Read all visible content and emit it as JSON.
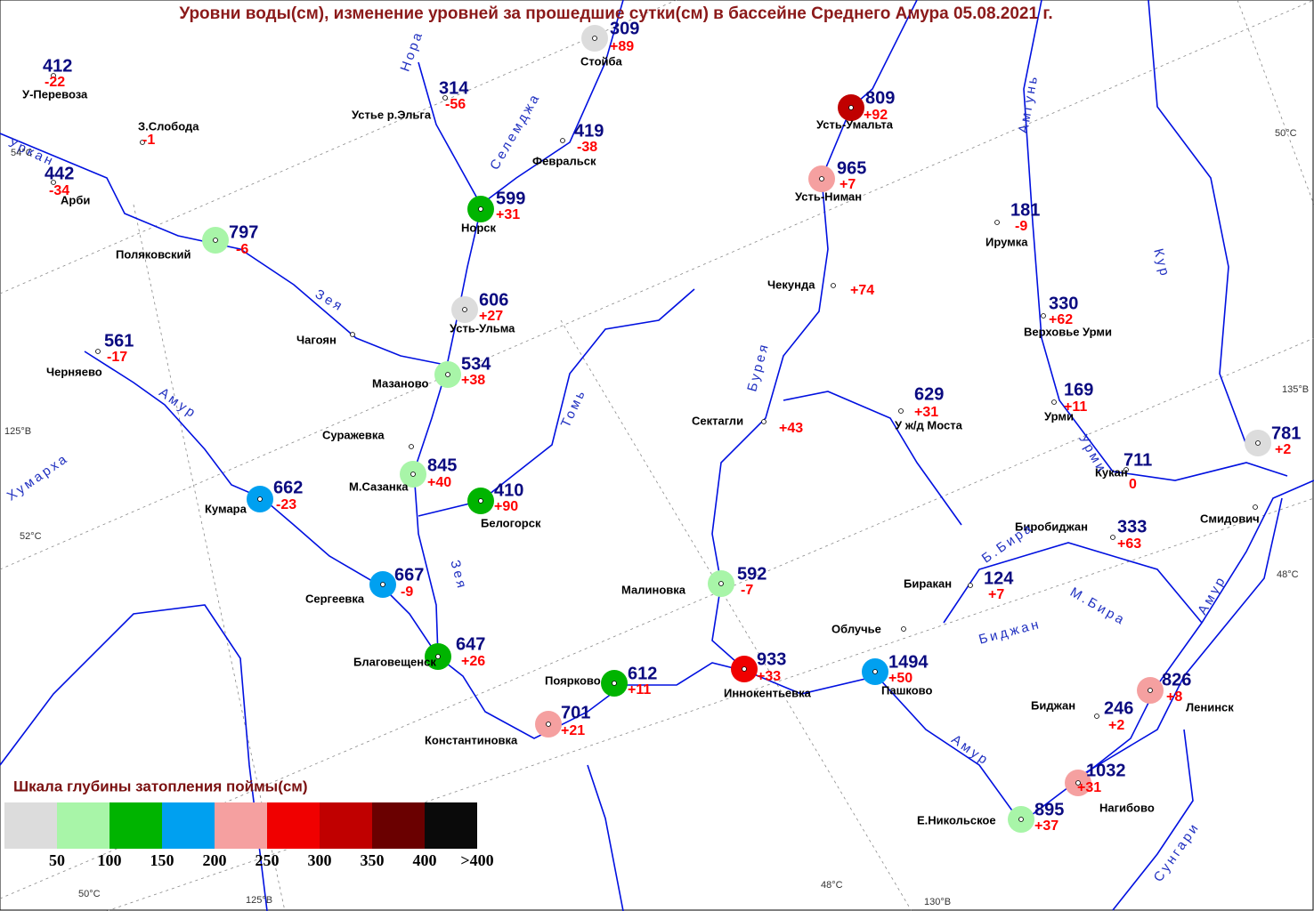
{
  "title": "Уровни воды(см), изменение уровней за прошедшие сутки(см) в бассейне Среднего Амура 05.08.2021 г.",
  "stations": [
    {
      "name": "У-Перевоза",
      "level": 412,
      "change": "-22"
    },
    {
      "name": "З.Слобода",
      "change": "-1"
    },
    {
      "name": "Арби",
      "level": 442,
      "change": "-34"
    },
    {
      "name": "Поляковский",
      "level": 797,
      "change": "-6",
      "color": "#a8f5a8"
    },
    {
      "name": "Устье р.Эльга",
      "level": 314,
      "change": "-56"
    },
    {
      "name": "Стойба",
      "level": 309,
      "change": "+89",
      "color": "#dcdcdc"
    },
    {
      "name": "Февральск",
      "level": 419,
      "change": "-38"
    },
    {
      "name": "Норск",
      "level": 599,
      "change": "+31",
      "color": "#00b400"
    },
    {
      "name": "Усть-Ульма",
      "level": 606,
      "change": "+27",
      "color": "#dcdcdc"
    },
    {
      "name": "Мазаново",
      "level": 534,
      "change": "+38",
      "color": "#a8f5a8"
    },
    {
      "name": "Суражевка"
    },
    {
      "name": "Чагоян"
    },
    {
      "name": "Черняево",
      "level": 561,
      "change": "-17"
    },
    {
      "name": "Кумара",
      "level": 662,
      "change": "-23",
      "color": "#00a0f0"
    },
    {
      "name": "М.Сазанка",
      "level": 845,
      "change": "+40",
      "color": "#a8f5a8"
    },
    {
      "name": "Белогорск",
      "level": 410,
      "change": "+90",
      "color": "#00b400"
    },
    {
      "name": "Сергеевка",
      "level": 667,
      "change": "-9",
      "color": "#00a0f0"
    },
    {
      "name": "Благовещенск",
      "level": 647,
      "change": "+26",
      "color": "#00b400"
    },
    {
      "name": "Поярково",
      "level": 612,
      "change": "+11",
      "color": "#00b400"
    },
    {
      "name": "Константиновка",
      "level": 701,
      "change": "+21",
      "color": "#f5a0a0"
    },
    {
      "name": "Малиновка",
      "level": 592,
      "change": "-7",
      "color": "#a8f5a8"
    },
    {
      "name": "Иннокентьевка",
      "level": 933,
      "change": "+33",
      "color": "#f00000"
    },
    {
      "name": "Пашково",
      "level": 1494,
      "change": "+50",
      "color": "#00a0f0"
    },
    {
      "name": "Усть-Умальта",
      "level": 809,
      "change": "+92",
      "color": "#c00000"
    },
    {
      "name": "Усть-Ниман",
      "level": 965,
      "change": "+7",
      "color": "#f5a0a0"
    },
    {
      "name": "Чекунда",
      "change": "+74"
    },
    {
      "name": "Сектагли",
      "change": "+43"
    },
    {
      "name": "У ж/д Моста",
      "level": 629,
      "change": "+31"
    },
    {
      "name": "Ирумка",
      "level": 181,
      "change": "-9"
    },
    {
      "name": "Верховье Урми",
      "level": 330,
      "change": "+62"
    },
    {
      "name": "Урми",
      "level": 169,
      "change": "+11"
    },
    {
      "name": "Кукан",
      "level": 711,
      "change": "0"
    },
    {
      "level": 781,
      "change": "+2",
      "color": "#dcdcdc"
    },
    {
      "name": "Смидович"
    },
    {
      "name": "Биробиджан",
      "level": 333,
      "change": "+63"
    },
    {
      "name": "Биракан",
      "level": 124,
      "change": "+7"
    },
    {
      "name": "Облучье"
    },
    {
      "name": "Ленинск",
      "level": 826,
      "change": "+8",
      "color": "#f5a0a0"
    },
    {
      "name": "Биджан",
      "level": 246,
      "change": "+2"
    },
    {
      "name": "Нагибово",
      "level": 1032,
      "change": "+31",
      "color": "#f5a0a0"
    },
    {
      "name": "Е.Никольское",
      "level": 895,
      "change": "+37",
      "color": "#a8f5a8"
    }
  ],
  "river_labels": [
    "Уркан",
    "Нора",
    "Селемджа",
    "Зея",
    "Зея",
    "Амур",
    "Амур",
    "Амур",
    "Хумарха",
    "Томь",
    "Бурея",
    "Амгунь",
    "Кур",
    "Урми",
    "Б.Бира",
    "М.Бира",
    "Биджан",
    "Сунгари"
  ],
  "grid_labels": [
    "54°C",
    "50°C",
    "135°В",
    "125°В",
    "52°C",
    "48°C",
    "48°C",
    "50°C",
    "125°В",
    "130°В"
  ],
  "legend": {
    "title": "Шкала глубины затопления поймы(см)",
    "items": [
      {
        "color": "#dcdcdc",
        "label": "50"
      },
      {
        "color": "#a8f5a8",
        "label": "100"
      },
      {
        "color": "#00b400",
        "label": "150"
      },
      {
        "color": "#00a0f0",
        "label": "200"
      },
      {
        "color": "#f5a0a0",
        "label": "250"
      },
      {
        "color": "#f00000",
        "label": "300"
      },
      {
        "color": "#c00000",
        "label": "350"
      },
      {
        "color": "#6a0000",
        "label": "400"
      },
      {
        "color": "#0a0a0a",
        "label": ">400"
      }
    ]
  }
}
